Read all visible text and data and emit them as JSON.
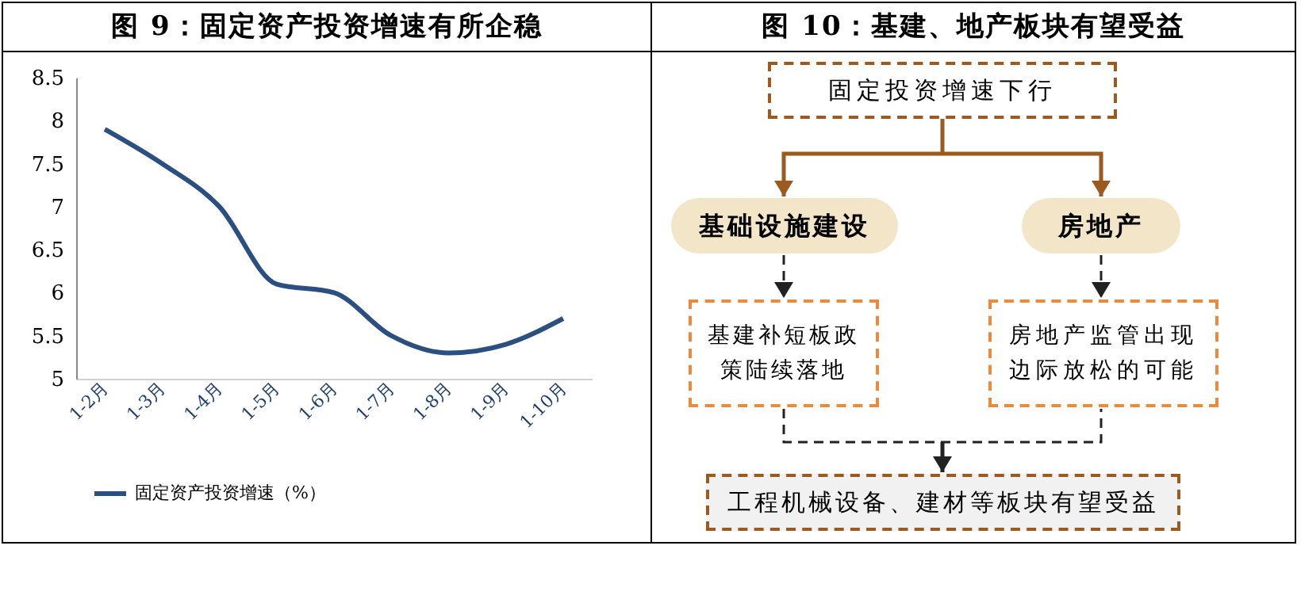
{
  "chart_data": [
    {
      "type": "line",
      "title": "图 9：固定资产投资增速有所企稳",
      "categories": [
        "1-2月",
        "1-3月",
        "1-4月",
        "1-5月",
        "1-6月",
        "1-7月",
        "1-8月",
        "1-9月",
        "1-10月"
      ],
      "series": [
        {
          "name": "固定资产投资增速（%）",
          "color": "#2b4f80",
          "values": [
            7.9,
            7.5,
            7.0,
            6.1,
            6.0,
            5.5,
            5.3,
            5.4,
            5.7
          ]
        }
      ],
      "ylim": [
        5,
        8.5
      ],
      "yticks": [
        5,
        5.5,
        6,
        6.5,
        7,
        7.5,
        8,
        8.5
      ],
      "grid": false,
      "legend": "bottom",
      "marker": "none",
      "line_style": "solid"
    },
    {
      "type": "other",
      "title": "图 10：基建、地产板块有望受益",
      "annotations": [
        "固定投资增速下行",
        "基础设施建设",
        "房地产",
        "基建补短板政策陆续落地",
        "房地产监管出现边际放松的可能",
        "工程机械设备、建材等板块有望受益"
      ]
    }
  ]
}
